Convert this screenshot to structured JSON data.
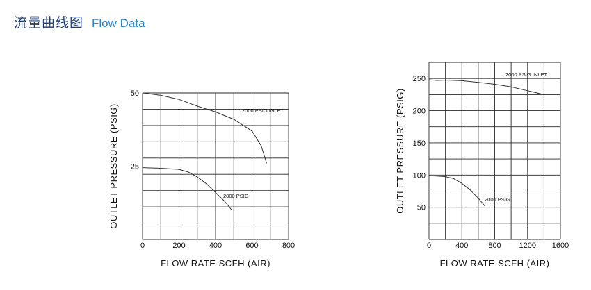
{
  "header": {
    "title_cn": "流量曲线图",
    "title_en": "Flow Data"
  },
  "chart_data": [
    {
      "type": "line",
      "xlabel": "FLOW RATE  SCFH (AIR)",
      "ylabel": "OUTLET  PRESSURE (PSIG)",
      "xlim": [
        0,
        800
      ],
      "ylim": [
        0,
        50
      ],
      "xticks": [
        0,
        200,
        400,
        600,
        800
      ],
      "yticks": [
        25,
        50
      ],
      "grid": true,
      "series": [
        {
          "name": "2000  PSIG INLET",
          "x": [
            0,
            100,
            200,
            300,
            400,
            500,
            600,
            650,
            680
          ],
          "y": [
            50,
            49.2,
            47.8,
            45.5,
            43.5,
            41,
            37,
            32,
            26
          ]
        },
        {
          "name": "2000  PSIG",
          "x": [
            0,
            100,
            200,
            250,
            300,
            350,
            400,
            450,
            490
          ],
          "y": [
            24.5,
            24.3,
            23.9,
            23,
            21.3,
            19,
            16,
            13,
            10
          ]
        }
      ]
    },
    {
      "type": "line",
      "xlabel": "FLOW  RATE  SCFH (AIR)",
      "ylabel": "OUTLET  PRESSURE (PSIG)",
      "xlim": [
        0,
        1600
      ],
      "ylim": [
        0,
        275
      ],
      "xticks": [
        0,
        400,
        800,
        1200,
        1600
      ],
      "yticks": [
        50,
        100,
        150,
        200,
        250
      ],
      "grid": true,
      "series": [
        {
          "name": "2000  PSIG INLET",
          "x": [
            0,
            100,
            200,
            400,
            600,
            800,
            1000,
            1200,
            1400
          ],
          "y": [
            248,
            247,
            247.5,
            246.5,
            244,
            241,
            237,
            231,
            225
          ]
        },
        {
          "name": "2000  PSIG",
          "x": [
            0,
            100,
            200,
            300,
            400,
            500,
            600,
            680
          ],
          "y": [
            99,
            98.5,
            97.5,
            94.5,
            87,
            77,
            64,
            52
          ]
        }
      ]
    }
  ]
}
